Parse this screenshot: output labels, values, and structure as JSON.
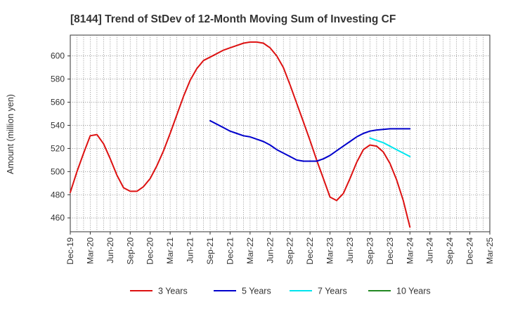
{
  "chart_data": {
    "type": "line",
    "title": "[8144]  Trend of StDev of 12-Month Moving Sum of Investing CF",
    "xlabel": "",
    "ylabel": "Amount (million yen)",
    "ylim": [
      448,
      618
    ],
    "yticks": [
      460,
      480,
      500,
      520,
      540,
      560,
      580,
      600
    ],
    "xticks": [
      "Dec-19",
      "Mar-20",
      "Jun-20",
      "Sep-20",
      "Dec-20",
      "Mar-21",
      "Jun-21",
      "Sep-21",
      "Dec-21",
      "Mar-22",
      "Jun-22",
      "Sep-22",
      "Dec-22",
      "Mar-23",
      "Jun-23",
      "Sep-23",
      "Dec-23",
      "Mar-24",
      "Jun-24",
      "Sep-24",
      "Dec-24",
      "Mar-25"
    ],
    "grid": true,
    "legend_position": "bottom",
    "series": [
      {
        "name": "3 Years",
        "color": "#dd1111",
        "values": [
          [
            "Dec-19",
            482
          ],
          [
            "Jan-20",
            500
          ],
          [
            "Feb-20",
            516
          ],
          [
            "Mar-20",
            531
          ],
          [
            "Apr-20",
            532
          ],
          [
            "May-20",
            524
          ],
          [
            "Jun-20",
            511
          ],
          [
            "Jul-20",
            497
          ],
          [
            "Aug-20",
            486
          ],
          [
            "Sep-20",
            483
          ],
          [
            "Oct-20",
            483
          ],
          [
            "Nov-20",
            487
          ],
          [
            "Dec-20",
            494
          ],
          [
            "Jan-21",
            505
          ],
          [
            "Feb-21",
            518
          ],
          [
            "Mar-21",
            533
          ],
          [
            "Apr-21",
            549
          ],
          [
            "May-21",
            565
          ],
          [
            "Jun-21",
            579
          ],
          [
            "Jul-21",
            589
          ],
          [
            "Aug-21",
            596
          ],
          [
            "Sep-21",
            599
          ],
          [
            "Oct-21",
            602
          ],
          [
            "Nov-21",
            605
          ],
          [
            "Dec-21",
            607
          ],
          [
            "Jan-22",
            609
          ],
          [
            "Feb-22",
            611
          ],
          [
            "Mar-22",
            612
          ],
          [
            "Apr-22",
            612
          ],
          [
            "May-22",
            611
          ],
          [
            "Jun-22",
            607
          ],
          [
            "Jul-22",
            600
          ],
          [
            "Aug-22",
            590
          ],
          [
            "Sep-22",
            575
          ],
          [
            "Oct-22",
            559
          ],
          [
            "Nov-22",
            543
          ],
          [
            "Dec-22",
            527
          ],
          [
            "Jan-23",
            510
          ],
          [
            "Feb-23",
            494
          ],
          [
            "Mar-23",
            478
          ],
          [
            "Apr-23",
            475
          ],
          [
            "May-23",
            481
          ],
          [
            "Jun-23",
            494
          ],
          [
            "Jul-23",
            508
          ],
          [
            "Aug-23",
            519
          ],
          [
            "Sep-23",
            523
          ],
          [
            "Oct-23",
            522
          ],
          [
            "Nov-23",
            517
          ],
          [
            "Dec-23",
            507
          ],
          [
            "Jan-24",
            493
          ],
          [
            "Feb-24",
            475
          ],
          [
            "Mar-24",
            452
          ]
        ]
      },
      {
        "name": "5 Years",
        "color": "#0000cc",
        "values": [
          [
            "Sep-21",
            544
          ],
          [
            "Oct-21",
            541
          ],
          [
            "Nov-21",
            538
          ],
          [
            "Dec-21",
            535
          ],
          [
            "Jan-22",
            533
          ],
          [
            "Feb-22",
            531
          ],
          [
            "Mar-22",
            530
          ],
          [
            "Apr-22",
            528
          ],
          [
            "May-22",
            526
          ],
          [
            "Jun-22",
            523
          ],
          [
            "Jul-22",
            519
          ],
          [
            "Aug-22",
            516
          ],
          [
            "Sep-22",
            513
          ],
          [
            "Oct-22",
            510
          ],
          [
            "Nov-22",
            509
          ],
          [
            "Dec-22",
            509
          ],
          [
            "Jan-23",
            509
          ],
          [
            "Feb-23",
            511
          ],
          [
            "Mar-23",
            514
          ],
          [
            "Apr-23",
            518
          ],
          [
            "May-23",
            522
          ],
          [
            "Jun-23",
            526
          ],
          [
            "Jul-23",
            530
          ],
          [
            "Aug-23",
            533
          ],
          [
            "Sep-23",
            535
          ],
          [
            "Oct-23",
            536
          ],
          [
            "Nov-23",
            536.5
          ],
          [
            "Dec-23",
            537
          ],
          [
            "Jan-24",
            537
          ],
          [
            "Feb-24",
            537
          ],
          [
            "Mar-24",
            537
          ]
        ]
      },
      {
        "name": "7 Years",
        "color": "#00e5ee",
        "values": [
          [
            "Sep-23",
            529
          ],
          [
            "Oct-23",
            527
          ],
          [
            "Nov-23",
            525
          ],
          [
            "Dec-23",
            522
          ],
          [
            "Jan-24",
            519
          ],
          [
            "Feb-24",
            516
          ],
          [
            "Mar-24",
            513
          ]
        ]
      },
      {
        "name": "10 Years",
        "color": "#228822",
        "values": []
      }
    ]
  }
}
